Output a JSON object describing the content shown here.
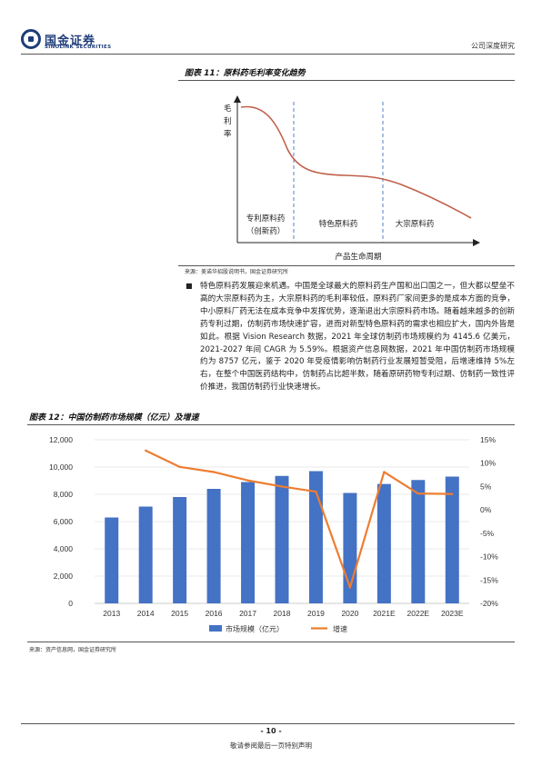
{
  "header": {
    "logo_cn": "国金证券",
    "logo_en": "SINOLINK SECURITIES",
    "report_type": "公司深度研究"
  },
  "figure11": {
    "title": "图表 11：原料药毛利率变化趋势",
    "ylabel": "毛利率",
    "xlabel": "产品生命周期",
    "stage1_line1": "专利原料药",
    "stage1_line2": "（创新药）",
    "stage2": "特色原料药",
    "stage3": "大宗原料药",
    "source": "来源：美诺华招股说明书，国金证券研究所"
  },
  "body": {
    "paragraph": "特色原料药发展迎来机遇。中国是全球最大的原料药生产国和出口国之一，但大都以壁垒不高的大宗原料药为主，大宗原料药的毛利率较低，原料药厂家间更多的是成本方面的竞争，中小原料厂药无法在成本竞争中发挥优势，逐渐退出大宗原料药市场。随着越来越多的创新药专利过期，仿制药市场快速扩容，进而对新型特色原料药的需求也相应扩大，国内外皆是如此。根据 Vision Research 数据，2021 年全球仿制药市场规模约为 4145.6 亿美元，2021-2027 年间 CAGR 为 5.59%。根据资产信息网数据，2021 年中国仿制药市场规模约为 8757 亿元，鉴于 2020 年受疫情影响仿制药行业发展短暂受阻，后增速维持 5%左右，在整个中国医药结构中，仿制药占比超半数，随着原研药物专利过期、仿制药一致性评价推进，我国仿制药行业快速增长。"
  },
  "figure12": {
    "title": "图表 12：中国仿制药市场规模（亿元）及增速",
    "source": "来源：资产信息网，国金证券研究所"
  },
  "chart_data": {
    "type": "bar",
    "title": "中国仿制药市场规模（亿元）及增速",
    "categories": [
      "2013",
      "2014",
      "2015",
      "2016",
      "2017",
      "2018",
      "2019",
      "2020",
      "2021E",
      "2022E",
      "2023E"
    ],
    "series": [
      {
        "name": "市场规模（亿元）",
        "type": "bar",
        "axis": "left",
        "values": [
          6300,
          7100,
          7800,
          8400,
          8900,
          9350,
          9700,
          8100,
          8757,
          9050,
          9300
        ]
      },
      {
        "name": "增速",
        "type": "line",
        "axis": "right",
        "values": [
          null,
          12.7,
          9.2,
          8.1,
          6.3,
          5.0,
          3.9,
          -16.6,
          8.1,
          3.5,
          3.4
        ]
      }
    ],
    "left_axis": {
      "min": 0,
      "max": 12000,
      "ticks": [
        "0",
        "2,000",
        "4,000",
        "6,000",
        "8,000",
        "10,000",
        "12,000"
      ]
    },
    "right_axis": {
      "min": -20,
      "max": 15,
      "ticks": [
        "-20%",
        "-15%",
        "-10%",
        "-5%",
        "0%",
        "5%",
        "10%",
        "15%"
      ]
    },
    "legend_position": "bottom",
    "colors": {
      "bar": "#4472c4",
      "line": "#ed7d31"
    }
  },
  "footer": {
    "page": "- 10 -",
    "note": "敬请参阅最后一页特别声明"
  }
}
